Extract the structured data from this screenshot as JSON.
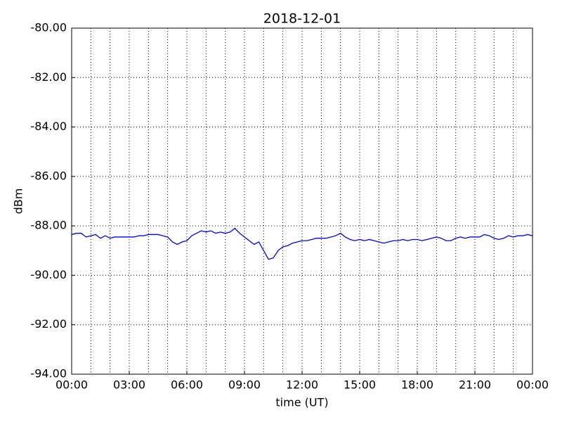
{
  "chart_data": {
    "type": "line",
    "title": "2018-12-01",
    "x_label": "time (UT)",
    "y_label": "dBm",
    "x": [
      0,
      0.25,
      0.5,
      0.75,
      1,
      1.25,
      1.5,
      1.75,
      2,
      2.25,
      2.5,
      2.75,
      3,
      3.25,
      3.5,
      3.75,
      4,
      4.25,
      4.5,
      4.75,
      5,
      5.25,
      5.5,
      5.75,
      6,
      6.25,
      6.5,
      6.75,
      7,
      7.25,
      7.5,
      7.75,
      8,
      8.25,
      8.5,
      8.75,
      9,
      9.25,
      9.5,
      9.75,
      10,
      10.25,
      10.5,
      10.75,
      11,
      11.25,
      11.5,
      11.75,
      12,
      12.25,
      12.5,
      12.75,
      13,
      13.25,
      13.5,
      13.75,
      14,
      14.25,
      14.5,
      14.75,
      15,
      15.25,
      15.5,
      15.75,
      16,
      16.25,
      16.5,
      16.75,
      17,
      17.25,
      17.5,
      17.75,
      18,
      18.25,
      18.5,
      18.75,
      19,
      19.25,
      19.5,
      19.75,
      20,
      20.25,
      20.5,
      20.75,
      21,
      21.25,
      21.5,
      21.75,
      22,
      22.25,
      22.5,
      22.75,
      23,
      23.25,
      23.5,
      23.75,
      24
    ],
    "series": [
      {
        "name": "dBm",
        "color": "#0000ff",
        "values": [
          -88.35,
          -88.3,
          -88.3,
          -88.45,
          -88.4,
          -88.35,
          -88.5,
          -88.4,
          -88.5,
          -88.45,
          -88.45,
          -88.45,
          -88.45,
          -88.45,
          -88.4,
          -88.4,
          -88.35,
          -88.35,
          -88.35,
          -88.4,
          -88.45,
          -88.65,
          -88.75,
          -88.65,
          -88.6,
          -88.4,
          -88.3,
          -88.2,
          -88.25,
          -88.2,
          -88.3,
          -88.25,
          -88.3,
          -88.25,
          -88.1,
          -88.3,
          -88.45,
          -88.6,
          -88.75,
          -88.65,
          -89.0,
          -89.35,
          -89.3,
          -89.0,
          -88.85,
          -88.8,
          -88.7,
          -88.65,
          -88.6,
          -88.6,
          -88.55,
          -88.5,
          -88.5,
          -88.5,
          -88.45,
          -88.4,
          -88.3,
          -88.45,
          -88.55,
          -88.6,
          -88.55,
          -88.6,
          -88.55,
          -88.6,
          -88.65,
          -88.7,
          -88.65,
          -88.6,
          -88.6,
          -88.55,
          -88.6,
          -88.55,
          -88.55,
          -88.6,
          -88.55,
          -88.5,
          -88.45,
          -88.5,
          -88.6,
          -88.6,
          -88.5,
          -88.45,
          -88.5,
          -88.45,
          -88.45,
          -88.45,
          -88.35,
          -88.4,
          -88.5,
          -88.55,
          -88.5,
          -88.4,
          -88.45,
          -88.4,
          -88.4,
          -88.35,
          -88.4
        ]
      }
    ],
    "xlim": [
      0,
      24
    ],
    "xticks": [
      {
        "value": 0,
        "label": "00:00"
      },
      {
        "value": 3,
        "label": "03:00"
      },
      {
        "value": 6,
        "label": "06:00"
      },
      {
        "value": 9,
        "label": "09:00"
      },
      {
        "value": 12,
        "label": "12:00"
      },
      {
        "value": 15,
        "label": "15:00"
      },
      {
        "value": 18,
        "label": "18:00"
      },
      {
        "value": 21,
        "label": "21:00"
      },
      {
        "value": 24,
        "label": "00:00"
      }
    ],
    "xminorticks": [
      1,
      2,
      4,
      5,
      7,
      8,
      10,
      11,
      13,
      14,
      16,
      17,
      19,
      20,
      22,
      23
    ],
    "ylim": [
      -94,
      -80
    ],
    "yticks": [
      {
        "value": -94,
        "label": "-94.00"
      },
      {
        "value": -92,
        "label": "-92.00"
      },
      {
        "value": -90,
        "label": "-90.00"
      },
      {
        "value": -88,
        "label": "-88.00"
      },
      {
        "value": -86,
        "label": "-86.00"
      },
      {
        "value": -84,
        "label": "-84.00"
      },
      {
        "value": -82,
        "label": "-82.00"
      },
      {
        "value": -80,
        "label": "-80.00"
      }
    ],
    "grid": true
  }
}
